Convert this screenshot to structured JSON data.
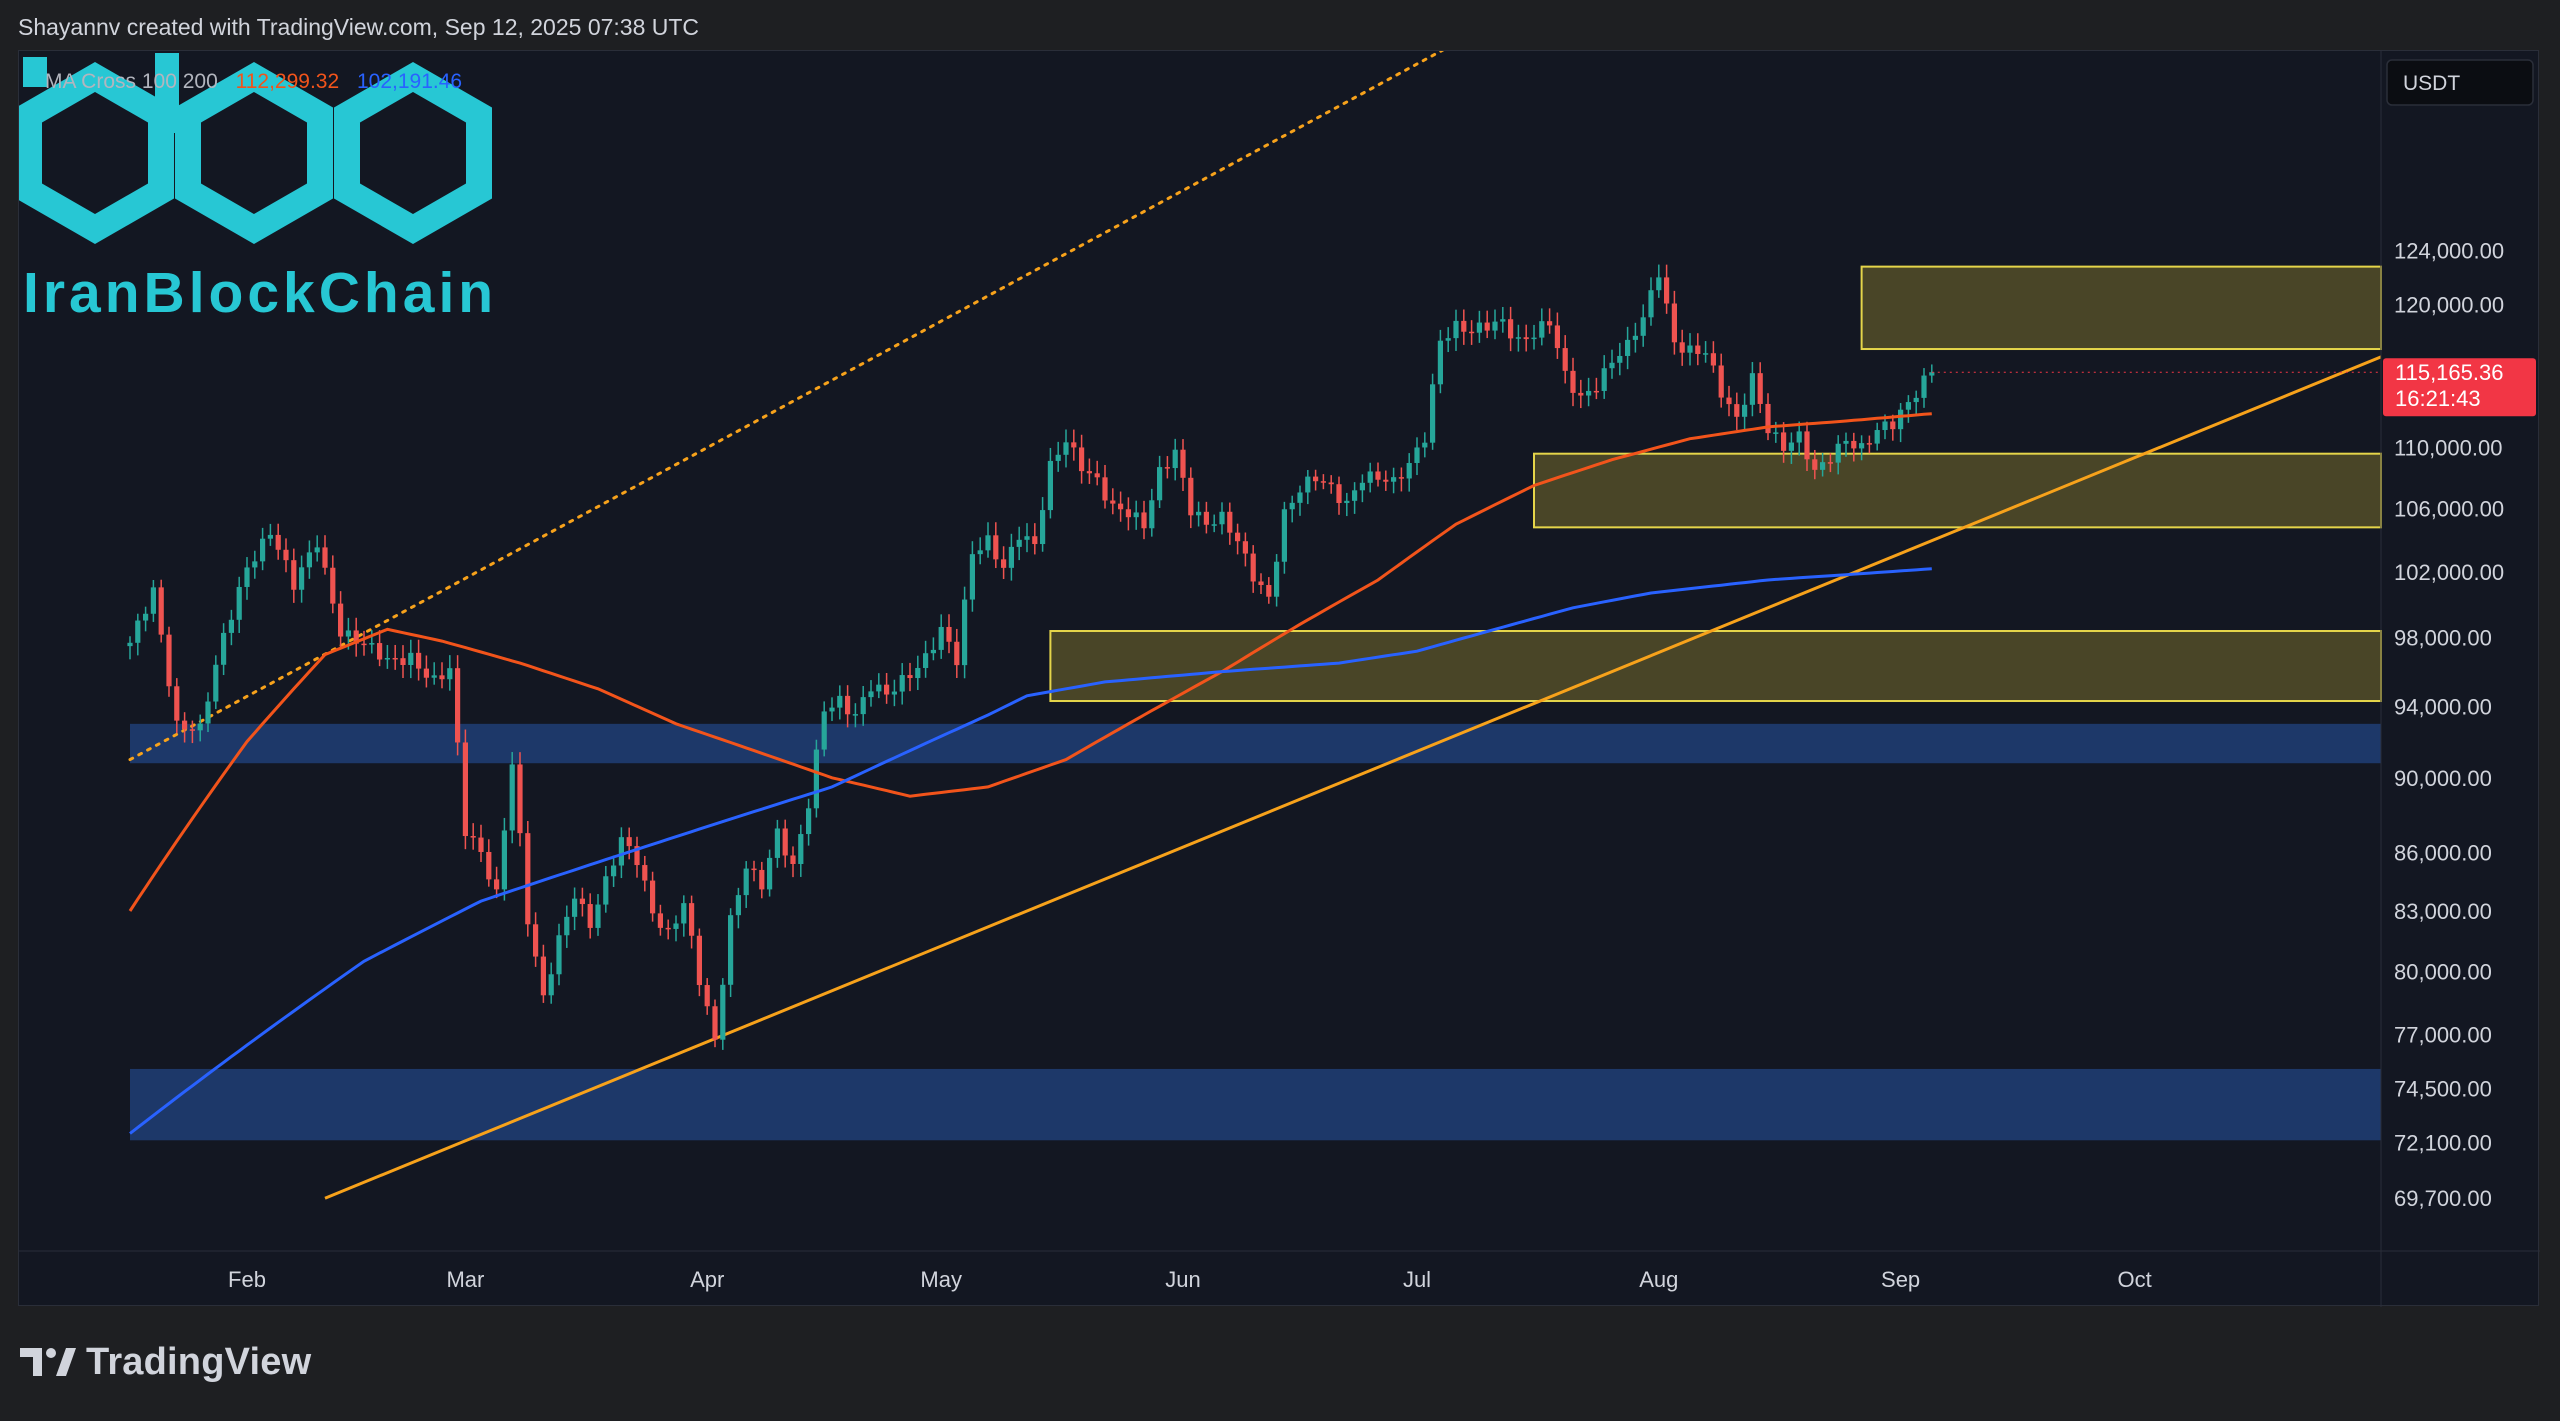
{
  "header": {
    "attribution": "Shayannv created with TradingView.com, Sep 12, 2025 07:38 UTC"
  },
  "legend": {
    "indicator": "MA Cross 100 200",
    "ma_fast_value": "112,299.32",
    "ma_slow_value": "102,191.46",
    "ma_fast_color": "#f2541b",
    "ma_slow_color": "#2962ff"
  },
  "currency_badge": "USDT",
  "price_tag": {
    "price": "115,165.36",
    "countdown": "16:21:43",
    "color": "#f23645"
  },
  "watermark": {
    "brand_text": "IranBlockChain",
    "color": "#27c7d4"
  },
  "footer": {
    "brand": "TradingView"
  },
  "colors": {
    "up": "#26a69a",
    "down": "#ef5350",
    "trendline": "#f7a21b",
    "resistance_zone": "#5c5529",
    "support_zone_blue": "#1e3a6e"
  },
  "chart_data": {
    "type": "candlestick",
    "symbol_quote": "USDT",
    "y_axis_ticks": [
      "124,000.00",
      "120,000.00",
      "110,000.00",
      "106,000.00",
      "102,000.00",
      "98,000.00",
      "94,000.00",
      "90,000.00",
      "86,000.00",
      "83,000.00",
      "80,000.00",
      "77,000.00",
      "74,500.00",
      "72,100.00",
      "69,700.00"
    ],
    "y_axis_scale": "log",
    "ylim": [
      67500,
      140000
    ],
    "x_axis_ticks": [
      "Feb",
      "Mar",
      "Apr",
      "May",
      "Jun",
      "Jul",
      "Aug",
      "Sep",
      "Oct"
    ],
    "x_range_days": [
      0,
      290
    ],
    "month_day_offsets": {
      "Feb": 15,
      "Mar": 43,
      "Apr": 74,
      "May": 104,
      "Jun": 135,
      "Jul": 165,
      "Aug": 196,
      "Sep": 227,
      "Oct": 257
    },
    "last_price": 115165.36,
    "ma_100_last": 112299.32,
    "ma_200_last": 102191.46,
    "zones": [
      {
        "name": "upper-supply-zone",
        "color": "yellow",
        "y_low": 116800,
        "y_high": 122800,
        "x_start_day": 222
      },
      {
        "name": "demand-zone-1",
        "color": "yellow",
        "y_low": 104800,
        "y_high": 109600,
        "x_start_day": 180
      },
      {
        "name": "demand-zone-2",
        "color": "yellow",
        "y_low": 94300,
        "y_high": 98400,
        "x_start_day": 118
      },
      {
        "name": "blue-support-1",
        "color": "blue",
        "y_low": 90800,
        "y_high": 93000,
        "x_start_day": 0
      },
      {
        "name": "blue-support-2",
        "color": "blue",
        "y_low": 72200,
        "y_high": 75400,
        "x_start_day": 0
      }
    ],
    "trendlines": [
      {
        "name": "ascending-support",
        "style": "solid",
        "points": [
          [
            25,
            69700
          ],
          [
            295,
            117700
          ]
        ]
      },
      {
        "name": "channel-top",
        "style": "dotted",
        "points": [
          [
            0,
            91000
          ],
          [
            195,
            150000
          ]
        ]
      }
    ],
    "close_anchors": [
      [
        0,
        97500
      ],
      [
        3,
        101000
      ],
      [
        6,
        93000
      ],
      [
        9,
        92500
      ],
      [
        12,
        98000
      ],
      [
        15,
        102500
      ],
      [
        18,
        104500
      ],
      [
        21,
        101000
      ],
      [
        24,
        104000
      ],
      [
        27,
        98500
      ],
      [
        30,
        97500
      ],
      [
        33,
        96500
      ],
      [
        36,
        97000
      ],
      [
        39,
        95500
      ],
      [
        41,
        96000
      ],
      [
        43,
        87000
      ],
      [
        45,
        86000
      ],
      [
        47,
        84000
      ],
      [
        49,
        91000
      ],
      [
        51,
        82500
      ],
      [
        53,
        78500
      ],
      [
        55,
        81500
      ],
      [
        57,
        84000
      ],
      [
        59,
        82500
      ],
      [
        61,
        84500
      ],
      [
        63,
        86500
      ],
      [
        65,
        85500
      ],
      [
        67,
        83000
      ],
      [
        69,
        82000
      ],
      [
        71,
        83500
      ],
      [
        73,
        79500
      ],
      [
        75,
        76500
      ],
      [
        77,
        82500
      ],
      [
        79,
        85500
      ],
      [
        81,
        84500
      ],
      [
        83,
        87000
      ],
      [
        85,
        85000
      ],
      [
        87,
        88500
      ],
      [
        89,
        94000
      ],
      [
        91,
        94500
      ],
      [
        93,
        93500
      ],
      [
        95,
        95000
      ],
      [
        97,
        94500
      ],
      [
        100,
        96000
      ],
      [
        102,
        97000
      ],
      [
        104,
        98500
      ],
      [
        106,
        96500
      ],
      [
        108,
        103000
      ],
      [
        110,
        104000
      ],
      [
        112,
        102500
      ],
      [
        114,
        104500
      ],
      [
        116,
        103500
      ],
      [
        118,
        108500
      ],
      [
        120,
        110500
      ],
      [
        122,
        109000
      ],
      [
        124,
        108000
      ],
      [
        126,
        106000
      ],
      [
        128,
        105500
      ],
      [
        130,
        104800
      ],
      [
        132,
        108500
      ],
      [
        134,
        110000
      ],
      [
        136,
        106000
      ],
      [
        138,
        104800
      ],
      [
        140,
        105200
      ],
      [
        142,
        104000
      ],
      [
        144,
        102000
      ],
      [
        146,
        100500
      ],
      [
        148,
        105500
      ],
      [
        150,
        107000
      ],
      [
        152,
        108000
      ],
      [
        154,
        107500
      ],
      [
        156,
        106500
      ],
      [
        158,
        108000
      ],
      [
        160,
        107800
      ],
      [
        162,
        107500
      ],
      [
        164,
        109000
      ],
      [
        166,
        111000
      ],
      [
        168,
        117500
      ],
      [
        170,
        118200
      ],
      [
        172,
        117800
      ],
      [
        174,
        118500
      ],
      [
        176,
        119000
      ],
      [
        178,
        117500
      ],
      [
        180,
        117800
      ],
      [
        182,
        118500
      ],
      [
        184,
        114800
      ],
      [
        186,
        113500
      ],
      [
        188,
        114500
      ],
      [
        190,
        116000
      ],
      [
        192,
        116800
      ],
      [
        194,
        118800
      ],
      [
        196,
        122500
      ],
      [
        198,
        117500
      ],
      [
        200,
        116800
      ],
      [
        202,
        116500
      ],
      [
        204,
        113500
      ],
      [
        206,
        111800
      ],
      [
        208,
        115000
      ],
      [
        210,
        111500
      ],
      [
        212,
        110000
      ],
      [
        214,
        110500
      ],
      [
        216,
        108200
      ],
      [
        218,
        109500
      ],
      [
        220,
        110800
      ],
      [
        222,
        110000
      ],
      [
        224,
        111000
      ],
      [
        226,
        111400
      ],
      [
        228,
        113000
      ],
      [
        230,
        114800
      ],
      [
        231,
        115165.36
      ]
    ],
    "ma_100_anchors": [
      [
        0,
        83000
      ],
      [
        15,
        92000
      ],
      [
        25,
        97000
      ],
      [
        33,
        98500
      ],
      [
        40,
        97800
      ],
      [
        50,
        96500
      ],
      [
        60,
        95000
      ],
      [
        70,
        93000
      ],
      [
        80,
        91500
      ],
      [
        90,
        90000
      ],
      [
        100,
        89000
      ],
      [
        110,
        89500
      ],
      [
        120,
        91000
      ],
      [
        130,
        93500
      ],
      [
        140,
        96000
      ],
      [
        150,
        98800
      ],
      [
        160,
        101500
      ],
      [
        170,
        105000
      ],
      [
        180,
        107500
      ],
      [
        190,
        109200
      ],
      [
        200,
        110600
      ],
      [
        210,
        111400
      ],
      [
        220,
        111800
      ],
      [
        231,
        112299.32
      ]
    ],
    "ma_200_anchors": [
      [
        0,
        72500
      ],
      [
        15,
        76500
      ],
      [
        30,
        80500
      ],
      [
        45,
        83500
      ],
      [
        60,
        85500
      ],
      [
        75,
        87500
      ],
      [
        90,
        89500
      ],
      [
        100,
        91500
      ],
      [
        110,
        93500
      ],
      [
        115,
        94600
      ],
      [
        125,
        95400
      ],
      [
        140,
        96000
      ],
      [
        155,
        96500
      ],
      [
        165,
        97200
      ],
      [
        175,
        98500
      ],
      [
        185,
        99800
      ],
      [
        195,
        100700
      ],
      [
        210,
        101500
      ],
      [
        231,
        102191.46
      ]
    ]
  }
}
